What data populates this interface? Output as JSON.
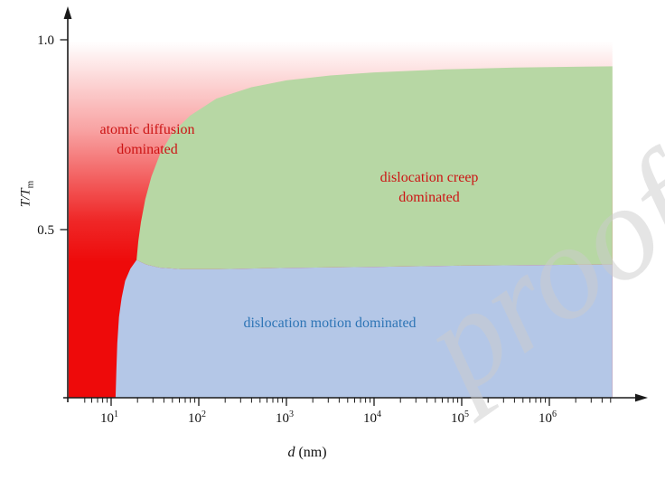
{
  "figure": {
    "watermark_text": "proofs",
    "background_color": "#ffffff"
  },
  "chart_data": {
    "type": "area",
    "description": "Deformation mechanism map: normalized temperature T/Tm versus grain size d (nm, log scale) with three dominance regions",
    "xlabel_var": "d",
    "xlabel_unit": "(nm)",
    "ylabel_var": "T/T",
    "ylabel_sub": "m",
    "x_scale": "log10",
    "x_range_log10": [
      0.52,
      6.72
    ],
    "y_range_T_over_Tm": [
      0.057,
      1.05
    ],
    "x_ticks": [
      {
        "log10": 1,
        "base": "10",
        "exp": "1"
      },
      {
        "log10": 2,
        "base": "10",
        "exp": "2"
      },
      {
        "log10": 3,
        "base": "10",
        "exp": "3"
      },
      {
        "log10": 4,
        "base": "10",
        "exp": "4"
      },
      {
        "log10": 5,
        "base": "10",
        "exp": "5"
      },
      {
        "log10": 6,
        "base": "10",
        "exp": "6"
      }
    ],
    "y_ticks": [
      {
        "value": 1.0,
        "label": "1.0"
      },
      {
        "value": 0.5,
        "label": "0.5"
      }
    ],
    "regions": [
      {
        "id": "atomic-diffusion",
        "label_line1": "atomic diffusion",
        "label_line2": "dominated",
        "text_color": "#cc1414",
        "fill": "red-gradient"
      },
      {
        "id": "dislocation-creep",
        "label_line1": "dislocation creep",
        "label_line2": "dominated",
        "text_color": "#cc1414",
        "fill": "#b7d7a4"
      },
      {
        "id": "dislocation-motion",
        "label_line1": "dislocation motion dominated",
        "text_color": "#2e75b6",
        "fill": "#b4c7e7"
      }
    ],
    "colors": {
      "red_solid": "#ee0a0a",
      "green_fill": "#b7d7a4",
      "blue_fill": "#b4c7e7",
      "axis": "#1a1a1a"
    },
    "red_gradient_stops": [
      {
        "offset": 0,
        "color": "#ffffff"
      },
      {
        "offset": 0.12,
        "color": "#fcd2d2"
      },
      {
        "offset": 0.25,
        "color": "#f8a2a2"
      },
      {
        "offset": 0.38,
        "color": "#f36262"
      },
      {
        "offset": 0.5,
        "color": "#ef2828"
      },
      {
        "offset": 0.62,
        "color": "#ee0a0a"
      },
      {
        "offset": 1,
        "color": "#ee0a0a"
      }
    ],
    "boundaries": {
      "units": "[log10(d_nm), T_over_Tm]",
      "red_blue": [
        [
          1.05,
          0.057
        ],
        [
          1.06,
          0.13
        ],
        [
          1.07,
          0.2
        ],
        [
          1.09,
          0.27
        ],
        [
          1.12,
          0.32
        ],
        [
          1.16,
          0.365
        ],
        [
          1.22,
          0.397
        ],
        [
          1.29,
          0.42
        ]
      ],
      "red_green": [
        [
          1.29,
          0.42
        ],
        [
          1.31,
          0.47
        ],
        [
          1.34,
          0.52
        ],
        [
          1.39,
          0.58
        ],
        [
          1.46,
          0.64
        ],
        [
          1.56,
          0.7
        ],
        [
          1.7,
          0.755
        ],
        [
          1.9,
          0.8
        ],
        [
          2.2,
          0.845
        ],
        [
          2.6,
          0.875
        ],
        [
          3.0,
          0.893
        ],
        [
          3.5,
          0.906
        ],
        [
          4.0,
          0.914
        ],
        [
          4.8,
          0.922
        ],
        [
          5.6,
          0.927
        ],
        [
          6.72,
          0.93
        ]
      ],
      "green_blue": [
        [
          1.29,
          0.42
        ],
        [
          1.4,
          0.408
        ],
        [
          1.55,
          0.4
        ],
        [
          1.8,
          0.396
        ],
        [
          2.2,
          0.396
        ],
        [
          3.0,
          0.399
        ],
        [
          4.0,
          0.402
        ],
        [
          5.0,
          0.405
        ],
        [
          6.72,
          0.408
        ]
      ]
    }
  }
}
